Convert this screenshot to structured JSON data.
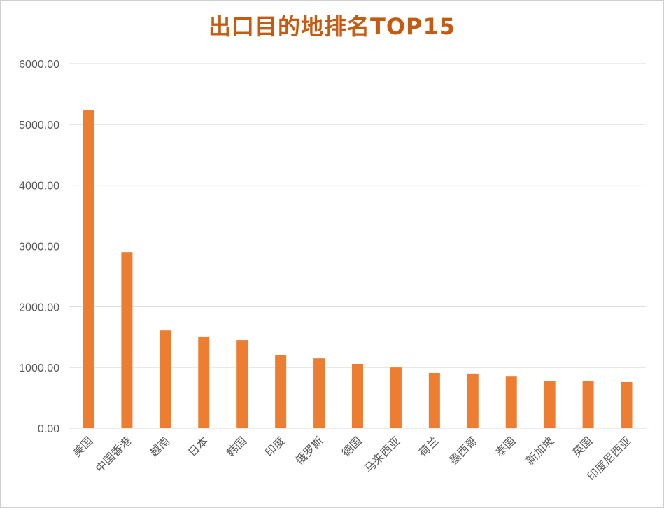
{
  "colors": {
    "title": "#C55A11",
    "bar": "#ED7D31",
    "grid": "#D9D9D9",
    "axis": "#D9D9D9",
    "tick_text": "#595959"
  },
  "chart_data": {
    "type": "bar",
    "title": "出口目的地排名TOP15",
    "xlabel": "",
    "ylabel": "",
    "ylim": [
      0,
      6000
    ],
    "ytick_step": 1000,
    "ytick_decimals": 2,
    "grid": true,
    "legend": "none",
    "categories": [
      "美国",
      "中国香港",
      "越南",
      "日本",
      "韩国",
      "印度",
      "俄罗斯",
      "德国",
      "马来西亚",
      "荷兰",
      "墨西哥",
      "泰国",
      "新加坡",
      "英国",
      "印度尼西亚"
    ],
    "series": [
      {
        "values": [
          5240,
          2900,
          1610,
          1510,
          1450,
          1200,
          1150,
          1060,
          1000,
          910,
          900,
          850,
          780,
          780,
          760
        ]
      }
    ]
  }
}
